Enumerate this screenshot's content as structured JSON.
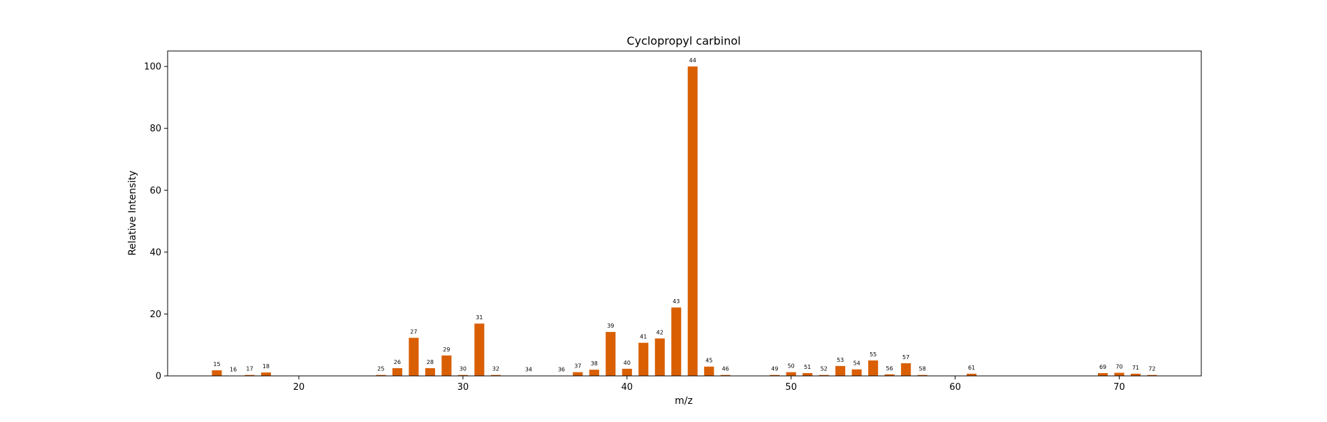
{
  "chart_data": {
    "type": "bar",
    "title": "Cyclopropyl carbinol",
    "xlabel": "m/z",
    "ylabel": "Relative Intensity",
    "xlim": [
      12,
      75
    ],
    "ylim": [
      0,
      105
    ],
    "xticks": [
      20,
      30,
      40,
      50,
      60,
      70
    ],
    "yticks": [
      0,
      20,
      40,
      60,
      80,
      100
    ],
    "bar_color": "#d95f02",
    "grid": false,
    "legend": "none",
    "x": [
      15,
      16,
      17,
      18,
      25,
      26,
      27,
      28,
      29,
      30,
      31,
      32,
      34,
      36,
      37,
      38,
      39,
      40,
      41,
      42,
      43,
      44,
      45,
      46,
      49,
      50,
      51,
      52,
      53,
      54,
      55,
      56,
      57,
      58,
      61,
      69,
      70,
      71,
      72
    ],
    "values": [
      1.8,
      0.1,
      0.3,
      1.1,
      0.3,
      2.5,
      12.3,
      2.5,
      6.6,
      0.3,
      16.9,
      0.3,
      0.1,
      0.1,
      1.2,
      2.0,
      14.2,
      2.3,
      10.7,
      12.1,
      22.1,
      100.0,
      3.0,
      0.3,
      0.3,
      1.2,
      0.9,
      0.3,
      3.2,
      2.1,
      5.0,
      0.5,
      4.1,
      0.3,
      0.7,
      0.9,
      1.0,
      0.7,
      0.3
    ],
    "labels": [
      "15",
      "16",
      "17",
      "18",
      "25",
      "26",
      "27",
      "28",
      "29",
      "30",
      "31",
      "32",
      "34",
      "36",
      "37",
      "38",
      "39",
      "40",
      "41",
      "42",
      "43",
      "44",
      "45",
      "46",
      "49",
      "50",
      "51",
      "52",
      "53",
      "54",
      "55",
      "56",
      "57",
      "58",
      "61",
      "69",
      "70",
      "71",
      "72"
    ]
  }
}
